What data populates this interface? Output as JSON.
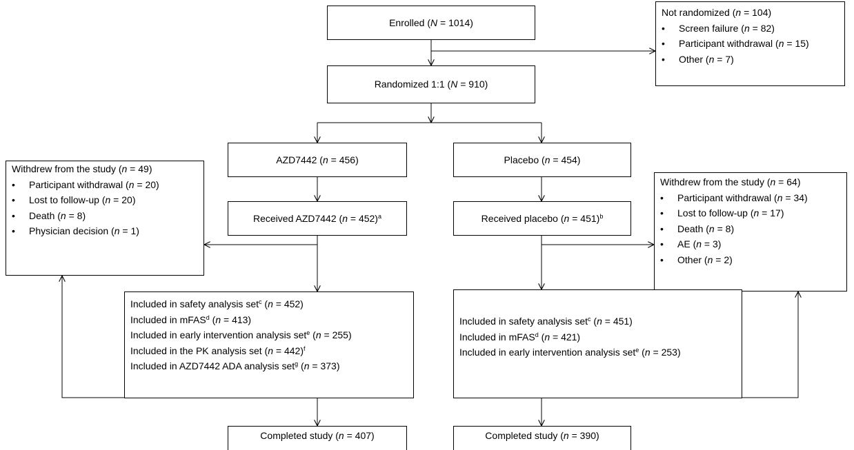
{
  "bullet": "•",
  "boxes": [
    {
      "lines": [
        [
          "Enrolled (",
          {
            "i": "N"
          },
          " = 1014)"
        ]
      ]
    },
    {
      "lines": [
        [
          "Not randomized (",
          {
            "i": "n"
          },
          " = 104)"
        ]
      ],
      "items": [
        [
          "Screen failure (",
          {
            "i": "n"
          },
          " = 82)"
        ],
        [
          "Participant withdrawal (",
          {
            "i": "n"
          },
          " = 15)"
        ],
        [
          "Other (",
          {
            "i": "n"
          },
          " = 7)"
        ]
      ]
    },
    {
      "lines": [
        [
          "Randomized 1:1 (",
          {
            "i": "N"
          },
          " = 910)"
        ]
      ]
    },
    {
      "lines": [
        [
          "AZD7442 (",
          {
            "i": "n"
          },
          " = 456)"
        ]
      ]
    },
    {
      "lines": [
        [
          "Placebo (",
          {
            "i": "n"
          },
          " = 454)"
        ]
      ]
    },
    {
      "lines": [
        [
          "Withdrew from the study (",
          {
            "i": "n"
          },
          " = 49)"
        ]
      ],
      "items": [
        [
          "Participant withdrawal (",
          {
            "i": "n"
          },
          " = 20)"
        ],
        [
          "Lost to follow-up (",
          {
            "i": "n"
          },
          " = 20)"
        ],
        [
          "Death (",
          {
            "i": "n"
          },
          " = 8)"
        ],
        [
          "Physician decision (",
          {
            "i": "n"
          },
          " = 1)"
        ]
      ]
    },
    {
      "lines": [
        [
          "Received AZD7442 (",
          {
            "i": "n"
          },
          " = 452)",
          {
            "sup": "a"
          }
        ]
      ]
    },
    {
      "lines": [
        [
          "Received placebo (",
          {
            "i": "n"
          },
          " = 451)",
          {
            "sup": "b"
          }
        ]
      ]
    },
    {
      "lines": [
        [
          "Withdrew from the study (",
          {
            "i": "n"
          },
          " = 64)"
        ]
      ],
      "items": [
        [
          "Participant withdrawal (",
          {
            "i": "n"
          },
          " = 34)"
        ],
        [
          "Lost to follow-up (",
          {
            "i": "n"
          },
          " = 17)"
        ],
        [
          "Death (",
          {
            "i": "n"
          },
          " = 8)"
        ],
        [
          "AE (",
          {
            "i": "n"
          },
          " = 3)"
        ],
        [
          "Other (",
          {
            "i": "n"
          },
          " = 2)"
        ]
      ]
    },
    {
      "lines": [
        [
          "Included in safety analysis set",
          {
            "sup": "c"
          },
          " (",
          {
            "i": "n"
          },
          " = 452)"
        ],
        [
          "Included in mFAS",
          {
            "sup": "d"
          },
          " (",
          {
            "i": "n"
          },
          " = 413)"
        ],
        [
          "Included in early intervention analysis set",
          {
            "sup": "e"
          },
          " (",
          {
            "i": "n"
          },
          " = 255)"
        ],
        [
          "Included in the PK analysis set (",
          {
            "i": "n"
          },
          " = 442)",
          {
            "sup": "f"
          }
        ],
        [
          "Included in AZD7442 ADA analysis set",
          {
            "sup": "g"
          },
          " (",
          {
            "i": "n"
          },
          " = 373)"
        ]
      ]
    },
    {
      "lines": [
        [
          "Included in safety analysis set",
          {
            "sup": "c"
          },
          " (",
          {
            "i": "n"
          },
          " = 451)"
        ],
        [
          "Included in mFAS",
          {
            "sup": "d"
          },
          " (",
          {
            "i": "n"
          },
          " = 421)"
        ],
        [
          "Included in early intervention analysis set",
          {
            "sup": "e"
          },
          " (",
          {
            "i": "n"
          },
          " = 253)"
        ]
      ]
    },
    {
      "lines": [
        [
          "Completed study (",
          {
            "i": "n"
          },
          " = 407)"
        ]
      ]
    },
    {
      "lines": [
        [
          "Completed study (",
          {
            "i": "n"
          },
          " = 390)"
        ]
      ]
    }
  ]
}
